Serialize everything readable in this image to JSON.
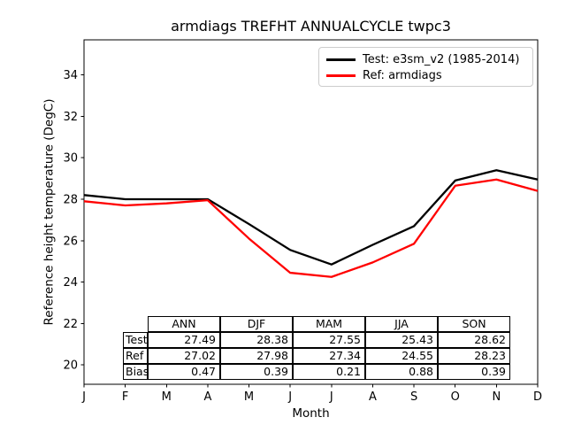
{
  "chart_data": {
    "type": "line",
    "title": "armdiags TREFHT ANNUALCYCLE twpc3",
    "xlabel": "Month",
    "ylabel": "Reference height temperature (DegC)",
    "x_tick_labels": [
      "J",
      "F",
      "M",
      "A",
      "M",
      "J",
      "J",
      "A",
      "S",
      "O",
      "N",
      "D"
    ],
    "y_ticks": [
      20,
      22,
      24,
      26,
      28,
      30,
      32,
      34
    ],
    "ylim": [
      19.07,
      35.69
    ],
    "grid": false,
    "legend_position": "upper right",
    "series": [
      {
        "name": "Test: e3sm_v2 (1985-2014)",
        "color": "#000000",
        "values": [
          28.2,
          28.0,
          28.0,
          28.0,
          26.8,
          25.55,
          24.85,
          25.8,
          26.7,
          28.9,
          29.4,
          28.95
        ]
      },
      {
        "name": "Ref: armdiags",
        "color": "#ff0000",
        "values": [
          27.9,
          27.7,
          27.8,
          27.95,
          26.1,
          24.45,
          24.25,
          24.95,
          25.85,
          28.65,
          28.95,
          28.4
        ]
      }
    ],
    "table": {
      "columns": [
        "ANN",
        "DJF",
        "MAM",
        "JJA",
        "SON"
      ],
      "rows": [
        {
          "label": "Test",
          "values": [
            "27.49",
            "28.38",
            "27.55",
            "25.43",
            "28.62"
          ]
        },
        {
          "label": "Ref",
          "values": [
            "27.02",
            "27.98",
            "27.34",
            "24.55",
            "28.23"
          ]
        },
        {
          "label": "Bias",
          "values": [
            "0.47",
            "0.39",
            "0.21",
            "0.88",
            "0.39"
          ]
        }
      ]
    }
  }
}
